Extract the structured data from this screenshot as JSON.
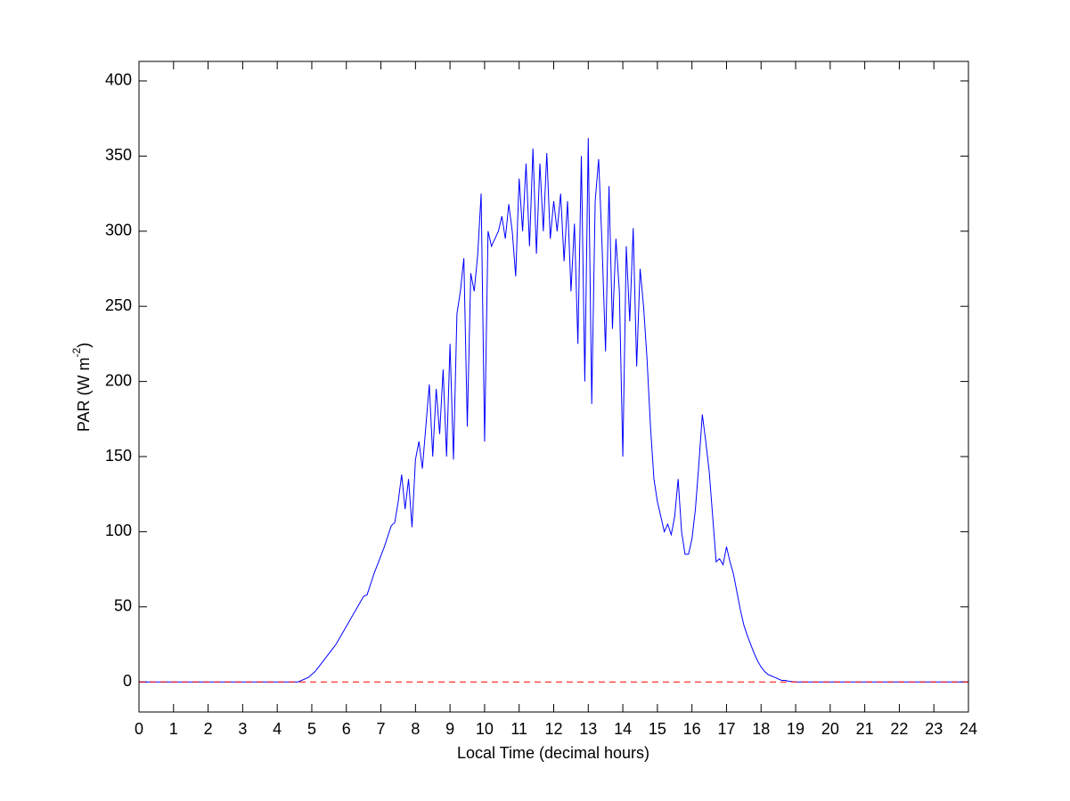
{
  "chart_data": {
    "type": "line",
    "xlabel": "Local Time (decimal hours)",
    "ylabel": [
      "PAR (W m",
      "-2",
      ")"
    ],
    "xlim": [
      0,
      24
    ],
    "xticks": [
      0,
      1,
      2,
      3,
      4,
      5,
      6,
      7,
      8,
      9,
      10,
      11,
      12,
      13,
      14,
      15,
      16,
      17,
      18,
      19,
      20,
      21,
      22,
      23,
      24
    ],
    "ylim": [
      -20,
      413
    ],
    "yticks": [
      0,
      50,
      100,
      150,
      200,
      250,
      300,
      350,
      400
    ],
    "grid": false,
    "series": [
      {
        "color": "#0000ff",
        "linestyle": "solid",
        "x": [
          0,
          4.5,
          4.6,
          4.7,
          4.8,
          4.9,
          5.0,
          5.1,
          5.2,
          5.3,
          5.4,
          5.5,
          5.6,
          5.7,
          5.8,
          5.9,
          6.0,
          6.1,
          6.2,
          6.3,
          6.4,
          6.5,
          6.6,
          6.7,
          6.8,
          6.9,
          7.0,
          7.1,
          7.2,
          7.3,
          7.4,
          7.5,
          7.6,
          7.7,
          7.8,
          7.9,
          8.0,
          8.1,
          8.2,
          8.3,
          8.4,
          8.5,
          8.6,
          8.7,
          8.8,
          8.9,
          9.0,
          9.1,
          9.2,
          9.3,
          9.4,
          9.5,
          9.6,
          9.7,
          9.8,
          9.9,
          10.0,
          10.1,
          10.2,
          10.3,
          10.4,
          10.5,
          10.6,
          10.7,
          10.8,
          10.9,
          11.0,
          11.1,
          11.2,
          11.3,
          11.4,
          11.5,
          11.6,
          11.7,
          11.8,
          11.9,
          12.0,
          12.1,
          12.2,
          12.3,
          12.4,
          12.5,
          12.6,
          12.7,
          12.8,
          12.9,
          13.0,
          13.1,
          13.2,
          13.3,
          13.4,
          13.5,
          13.6,
          13.7,
          13.8,
          13.9,
          14.0,
          14.1,
          14.2,
          14.3,
          14.4,
          14.5,
          14.6,
          14.7,
          14.8,
          14.9,
          15.0,
          15.1,
          15.2,
          15.3,
          15.4,
          15.5,
          15.6,
          15.7,
          15.8,
          15.9,
          16.0,
          16.1,
          16.2,
          16.3,
          16.4,
          16.5,
          16.6,
          16.7,
          16.8,
          16.9,
          17.0,
          17.1,
          17.2,
          17.3,
          17.4,
          17.5,
          17.6,
          17.7,
          17.8,
          17.9,
          18.0,
          18.1,
          18.2,
          18.3,
          18.4,
          18.5,
          18.6,
          18.7,
          18.8,
          18.9,
          19.0,
          24
        ],
        "values": [
          0,
          0,
          0,
          1,
          2,
          3,
          5,
          7,
          10,
          13,
          16,
          19,
          22,
          25,
          29,
          33,
          37,
          41,
          45,
          49,
          53,
          57,
          58,
          65,
          72,
          78,
          84,
          90,
          97,
          104,
          106,
          120,
          138,
          115,
          135,
          103,
          148,
          160,
          142,
          170,
          198,
          150,
          195,
          165,
          208,
          150,
          225,
          148,
          245,
          260,
          282,
          170,
          272,
          260,
          284,
          325,
          160,
          300,
          290,
          295,
          300,
          310,
          295,
          318,
          300,
          270,
          335,
          300,
          345,
          290,
          355,
          285,
          345,
          300,
          352,
          295,
          320,
          300,
          325,
          280,
          320,
          260,
          305,
          225,
          350,
          200,
          362,
          185,
          320,
          348,
          290,
          220,
          330,
          235,
          295,
          260,
          150,
          290,
          240,
          302,
          210,
          275,
          250,
          215,
          170,
          135,
          120,
          110,
          100,
          105,
          98,
          110,
          135,
          100,
          85,
          85,
          95,
          115,
          145,
          178,
          160,
          140,
          110,
          80,
          82,
          78,
          90,
          80,
          72,
          60,
          48,
          38,
          31,
          25,
          19,
          14,
          10,
          7,
          5,
          4,
          3,
          2,
          1,
          1,
          0.5,
          0.2,
          0,
          0
        ]
      },
      {
        "color": "#ff0000",
        "linestyle": "dashed",
        "x": [
          0,
          24
        ],
        "values": [
          0,
          0
        ]
      }
    ]
  }
}
